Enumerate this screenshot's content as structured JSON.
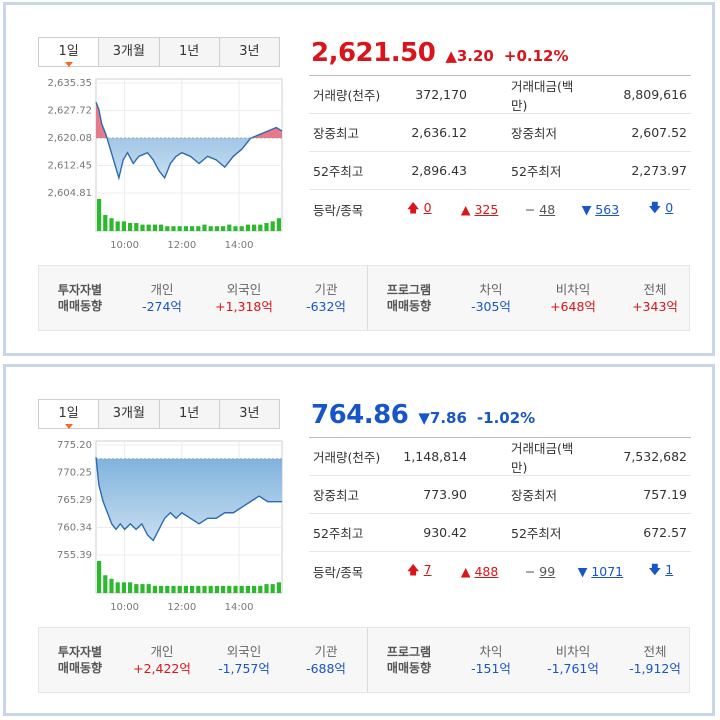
{
  "tabs": [
    "1일",
    "3개월",
    "1년",
    "3년"
  ],
  "panels": [
    {
      "price": "2,621.50",
      "direction": "up",
      "change": "3.20",
      "change_pct": "+0.12%",
      "stats": [
        {
          "l1": "거래량(천주)",
          "v1": "372,170",
          "l2": "거래대금(백만)",
          "v2": "8,809,616"
        },
        {
          "l1": "장중최고",
          "v1": "2,636.12",
          "l2": "장중최저",
          "v2": "2,607.52"
        },
        {
          "l1": "52주최고",
          "v1": "2,896.43",
          "l2": "52주최저",
          "v2": "2,273.97"
        }
      ],
      "breadth_label": "등락/종목",
      "breadth": {
        "limit_up": "0",
        "up": "325",
        "flat": "48",
        "down": "563",
        "limit_down": "0"
      },
      "investor_label": [
        "투자자별",
        "매매동향"
      ],
      "investors": [
        {
          "h": "개인",
          "v": "-274억",
          "sign": "down"
        },
        {
          "h": "외국인",
          "v": "+1,318억",
          "sign": "up"
        },
        {
          "h": "기관",
          "v": "-632억",
          "sign": "down"
        }
      ],
      "program_label": [
        "프로그램",
        "매매동향"
      ],
      "programs": [
        {
          "h": "차익",
          "v": "-305억",
          "sign": "down"
        },
        {
          "h": "비차익",
          "v": "+648억",
          "sign": "up"
        },
        {
          "h": "전체",
          "v": "+343억",
          "sign": "up"
        }
      ],
      "chart_data": {
        "type": "area",
        "x_ticks": [
          "10:00",
          "12:00",
          "14:00"
        ],
        "y_ticks": [
          "2,635.35",
          "2,627.72",
          "2,620.08",
          "2,612.45",
          "2,604.81"
        ],
        "ylim": [
          2604.81,
          2635.35
        ],
        "reference": 2620.08,
        "time_range": [
          9,
          15.5
        ],
        "values": [
          [
            9.0,
            2630
          ],
          [
            9.1,
            2628
          ],
          [
            9.2,
            2624
          ],
          [
            9.35,
            2621
          ],
          [
            9.5,
            2617
          ],
          [
            9.65,
            2613
          ],
          [
            9.8,
            2609
          ],
          [
            9.95,
            2614
          ],
          [
            10.1,
            2616
          ],
          [
            10.3,
            2613
          ],
          [
            10.5,
            2615
          ],
          [
            10.8,
            2616
          ],
          [
            11.0,
            2614
          ],
          [
            11.2,
            2611
          ],
          [
            11.4,
            2609
          ],
          [
            11.6,
            2613
          ],
          [
            11.8,
            2615
          ],
          [
            12.0,
            2616
          ],
          [
            12.3,
            2615
          ],
          [
            12.6,
            2613
          ],
          [
            12.9,
            2615
          ],
          [
            13.2,
            2614
          ],
          [
            13.5,
            2612
          ],
          [
            13.8,
            2615
          ],
          [
            14.1,
            2617
          ],
          [
            14.4,
            2620
          ],
          [
            14.7,
            2621
          ],
          [
            15.0,
            2622
          ],
          [
            15.3,
            2623
          ],
          [
            15.5,
            2622
          ]
        ],
        "volume": [
          10,
          5,
          4,
          3,
          3,
          2.5,
          2.5,
          2,
          2,
          2,
          2,
          1.5,
          1.5,
          1.5,
          1.5,
          1.5,
          1.5,
          2,
          1.5,
          1.5,
          1.5,
          2,
          1.5,
          1.5,
          2,
          2,
          2,
          2.5,
          3,
          4
        ],
        "colors": {
          "up": "#e8798a",
          "down": "#7fb2dc",
          "line": "#2b6cb0",
          "line_up": "#d9141a",
          "bar": "#2db92d"
        }
      }
    },
    {
      "price": "764.86",
      "direction": "down",
      "change": "7.86",
      "change_pct": "-1.02%",
      "stats": [
        {
          "l1": "거래량(천주)",
          "v1": "1,148,814",
          "l2": "거래대금(백만)",
          "v2": "7,532,682"
        },
        {
          "l1": "장중최고",
          "v1": "773.90",
          "l2": "장중최저",
          "v2": "757.19"
        },
        {
          "l1": "52주최고",
          "v1": "930.42",
          "l2": "52주최저",
          "v2": "672.57"
        }
      ],
      "breadth_label": "등락/종목",
      "breadth": {
        "limit_up": "7",
        "up": "488",
        "flat": "99",
        "down": "1071",
        "limit_down": "1"
      },
      "investor_label": [
        "투자자별",
        "매매동향"
      ],
      "investors": [
        {
          "h": "개인",
          "v": "+2,422억",
          "sign": "up"
        },
        {
          "h": "외국인",
          "v": "-1,757억",
          "sign": "down"
        },
        {
          "h": "기관",
          "v": "-688억",
          "sign": "down"
        }
      ],
      "program_label": [
        "프로그램",
        "매매동향"
      ],
      "programs": [
        {
          "h": "차익",
          "v": "-151억",
          "sign": "down"
        },
        {
          "h": "비차익",
          "v": "-1,761억",
          "sign": "down"
        },
        {
          "h": "전체",
          "v": "-1,912억",
          "sign": "down"
        }
      ],
      "chart_data": {
        "type": "area",
        "x_ticks": [
          "10:00",
          "12:00",
          "14:00"
        ],
        "y_ticks": [
          "775.20",
          "770.25",
          "765.29",
          "760.34",
          "755.39"
        ],
        "ylim": [
          755.39,
          775.2
        ],
        "reference": 772.72,
        "time_range": [
          9,
          15.5
        ],
        "values": [
          [
            9.0,
            773
          ],
          [
            9.1,
            768
          ],
          [
            9.25,
            765
          ],
          [
            9.4,
            763
          ],
          [
            9.55,
            761
          ],
          [
            9.7,
            760
          ],
          [
            9.85,
            761
          ],
          [
            10.0,
            760
          ],
          [
            10.2,
            761
          ],
          [
            10.4,
            760
          ],
          [
            10.6,
            761
          ],
          [
            10.8,
            759
          ],
          [
            11.0,
            758
          ],
          [
            11.2,
            760
          ],
          [
            11.4,
            762
          ],
          [
            11.6,
            763
          ],
          [
            11.8,
            762
          ],
          [
            12.0,
            763
          ],
          [
            12.3,
            762
          ],
          [
            12.6,
            761
          ],
          [
            12.9,
            762
          ],
          [
            13.2,
            762
          ],
          [
            13.5,
            763
          ],
          [
            13.8,
            763
          ],
          [
            14.1,
            764
          ],
          [
            14.4,
            765
          ],
          [
            14.7,
            766
          ],
          [
            15.0,
            765
          ],
          [
            15.3,
            765
          ],
          [
            15.5,
            765
          ]
        ],
        "volume": [
          9,
          5,
          4,
          3,
          3,
          3,
          2.5,
          2.5,
          2.5,
          2,
          2,
          2,
          2,
          2,
          2,
          2,
          2,
          2,
          2,
          2,
          2,
          2,
          2,
          2,
          2,
          2,
          2,
          2.5,
          2.5,
          3
        ],
        "colors": {
          "up": "#e8798a",
          "down": "#7fb2dc",
          "line": "#2b6cb0",
          "line_up": "#d9141a",
          "bar": "#2db92d"
        }
      }
    }
  ]
}
